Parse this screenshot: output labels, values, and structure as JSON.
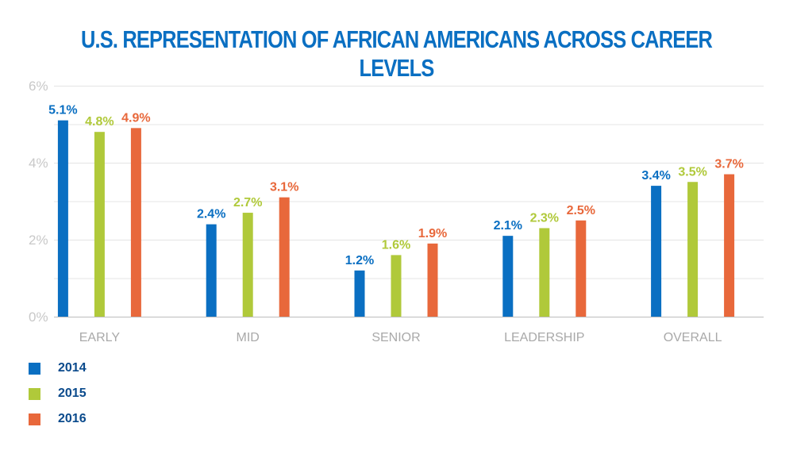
{
  "chart_data": {
    "type": "bar",
    "title": "U.S. REPRESENTATION OF AFRICAN AMERICANS ACROSS CAREER LEVELS",
    "categories": [
      "EARLY",
      "MID",
      "SENIOR",
      "LEADERSHIP",
      "OVERALL"
    ],
    "series": [
      {
        "name": "2014",
        "color": "#0a6fc2",
        "values": [
          5.1,
          2.4,
          1.2,
          2.1,
          3.4
        ],
        "labels": [
          "5.1%",
          "2.4%",
          "1.2%",
          "2.1%",
          "3.4%"
        ]
      },
      {
        "name": "2015",
        "color": "#b0c93a",
        "values": [
          4.8,
          2.7,
          1.6,
          2.3,
          3.5
        ],
        "labels": [
          "4.8%",
          "2.7%",
          "1.6%",
          "2.3%",
          "3.5%"
        ]
      },
      {
        "name": "2016",
        "color": "#e8683b",
        "values": [
          4.9,
          3.1,
          1.9,
          2.5,
          3.7
        ],
        "labels": [
          "4.9%",
          "3.1%",
          "1.9%",
          "2.5%",
          "3.7%"
        ]
      }
    ],
    "yticks": [
      0,
      2,
      4,
      6
    ],
    "ytick_labels": [
      "0%",
      "2%",
      "4%",
      "6%"
    ],
    "ylim": [
      0,
      6
    ],
    "grid": true,
    "legend_position": "bottom-left"
  }
}
